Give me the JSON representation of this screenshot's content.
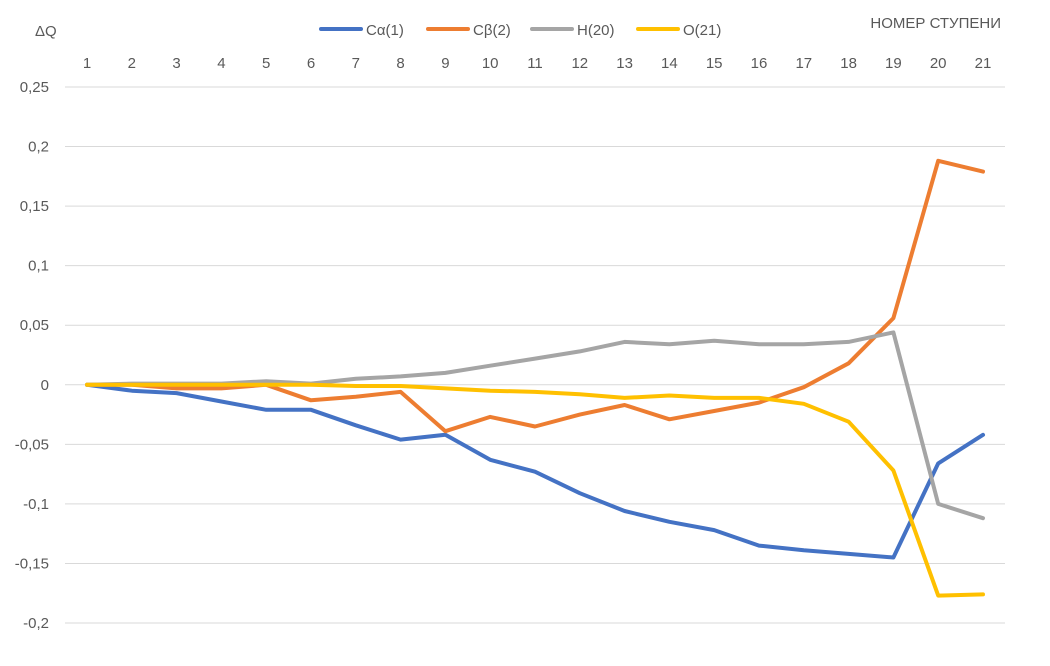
{
  "chart_data": {
    "type": "line",
    "ylabel": "ΔQ",
    "xlabel": "НОМЕР СТУПЕНИ",
    "x": [
      1,
      2,
      3,
      4,
      5,
      6,
      7,
      8,
      9,
      10,
      11,
      12,
      13,
      14,
      15,
      16,
      17,
      18,
      19,
      20,
      21
    ],
    "x_tick_labels": [
      "1",
      "2",
      "3",
      "4",
      "5",
      "6",
      "7",
      "8",
      "9",
      "10",
      "11",
      "12",
      "13",
      "14",
      "15",
      "16",
      "17",
      "18",
      "19",
      "20",
      "21"
    ],
    "ylim": [
      -0.2,
      0.25
    ],
    "y_ticks": [
      0.25,
      0.2,
      0.15,
      0.1,
      0.05,
      0,
      -0.05,
      -0.1,
      -0.15,
      -0.2
    ],
    "y_tick_labels": [
      "0,25",
      "0,2",
      "0,15",
      "0,1",
      "0,05",
      "0",
      "-0,05",
      "-0,1",
      "-0,15",
      "-0,2"
    ],
    "x_axis_position": "top",
    "grid": true,
    "legend_position": "top",
    "series": [
      {
        "name": "Cα(1)",
        "color": "#4472C4",
        "values": [
          0,
          -0.005,
          -0.007,
          -0.014,
          -0.021,
          -0.021,
          -0.034,
          -0.046,
          -0.042,
          -0.063,
          -0.073,
          -0.091,
          -0.106,
          -0.115,
          -0.122,
          -0.135,
          -0.139,
          -0.142,
          -0.145,
          -0.066,
          -0.042
        ]
      },
      {
        "name": "Cβ(2)",
        "color": "#ED7D31",
        "values": [
          0,
          0,
          -0.003,
          -0.003,
          0,
          -0.013,
          -0.01,
          -0.006,
          -0.039,
          -0.027,
          -0.035,
          -0.025,
          -0.017,
          -0.029,
          -0.022,
          -0.015,
          -0.002,
          0.018,
          0.056,
          0.188,
          0.179
        ]
      },
      {
        "name": "H(20)",
        "color": "#A5A5A5",
        "values": [
          0,
          0.001,
          0.001,
          0.001,
          0.003,
          0.001,
          0.005,
          0.007,
          0.01,
          0.016,
          0.022,
          0.028,
          0.036,
          0.034,
          0.037,
          0.034,
          0.034,
          0.036,
          0.044,
          -0.1,
          -0.112
        ]
      },
      {
        "name": "O(21)",
        "color": "#FFC000",
        "values": [
          0,
          0,
          0,
          0,
          0,
          0,
          -0.001,
          -0.001,
          -0.003,
          -0.005,
          -0.006,
          -0.008,
          -0.011,
          -0.009,
          -0.011,
          -0.011,
          -0.016,
          -0.031,
          -0.072,
          -0.177,
          -0.176
        ]
      }
    ]
  }
}
